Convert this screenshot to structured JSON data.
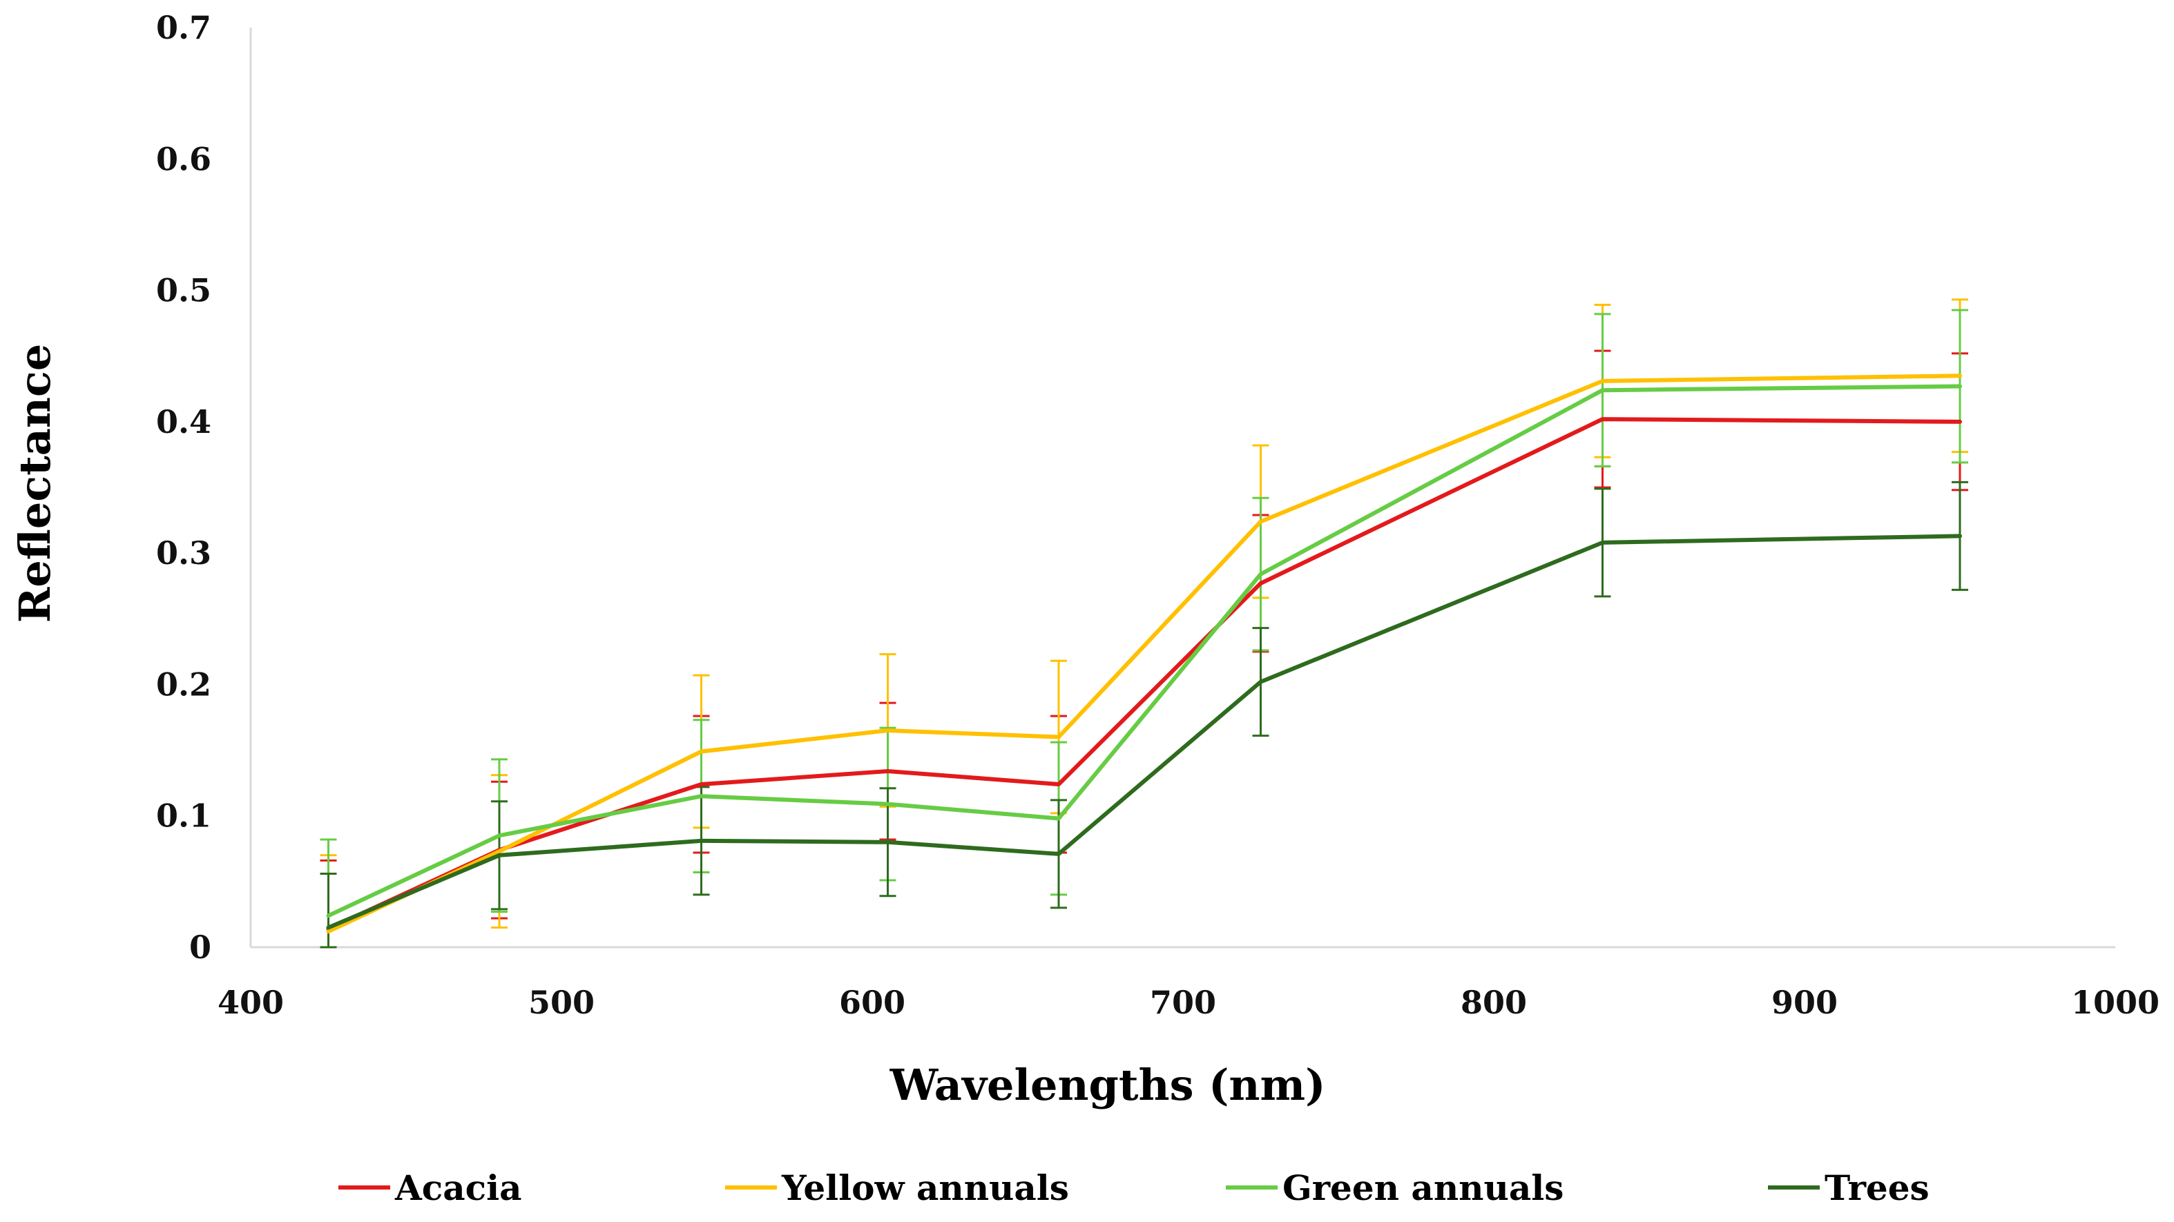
{
  "chart_data": {
    "type": "line",
    "title": "",
    "xlabel": "Wavelengths (nm)",
    "ylabel": "Reflectance",
    "xlim": [
      400,
      1000
    ],
    "ylim": [
      0,
      0.7
    ],
    "xticks": [
      400,
      500,
      600,
      700,
      800,
      900,
      1000
    ],
    "xtick_labels": [
      "400",
      "500",
      "600",
      "700",
      "800",
      "900",
      "1000"
    ],
    "yticks": [
      0,
      0.1,
      0.2,
      0.3,
      0.4,
      0.5,
      0.6,
      0.7
    ],
    "ytick_labels": [
      "0",
      "0.1",
      "0.2",
      "0.3",
      "0.4",
      "0.5",
      "0.6",
      "0.7"
    ],
    "grid": false,
    "legend_position": "bottom",
    "x": [
      425,
      480,
      545,
      605,
      660,
      725,
      835,
      950
    ],
    "series": [
      {
        "name": "Acacia",
        "color": "#e31a1c",
        "values": [
          0.014,
          0.074,
          0.124,
          0.134,
          0.124,
          0.277,
          0.402,
          0.4
        ],
        "error": [
          0.052,
          0.052,
          0.052,
          0.052,
          0.052,
          0.052,
          0.052,
          0.052
        ]
      },
      {
        "name": "Yellow annuals",
        "color": "#ffc000",
        "values": [
          0.012,
          0.073,
          0.149,
          0.165,
          0.16,
          0.324,
          0.431,
          0.435
        ],
        "error": [
          0.058,
          0.058,
          0.058,
          0.058,
          0.058,
          0.058,
          0.058,
          0.058
        ]
      },
      {
        "name": "Green annuals",
        "color": "#66cc44",
        "values": [
          0.024,
          0.085,
          0.115,
          0.109,
          0.098,
          0.284,
          0.424,
          0.427
        ],
        "error": [
          0.058,
          0.058,
          0.058,
          0.058,
          0.058,
          0.058,
          0.058,
          0.058
        ]
      },
      {
        "name": "Trees",
        "color": "#2e6b1e",
        "values": [
          0.015,
          0.07,
          0.081,
          0.08,
          0.071,
          0.202,
          0.308,
          0.313
        ],
        "error": [
          0.041,
          0.041,
          0.041,
          0.041,
          0.041,
          0.041,
          0.041,
          0.041
        ]
      }
    ]
  },
  "colors": {
    "axis": "#d9d9d9",
    "text": "#000000"
  }
}
